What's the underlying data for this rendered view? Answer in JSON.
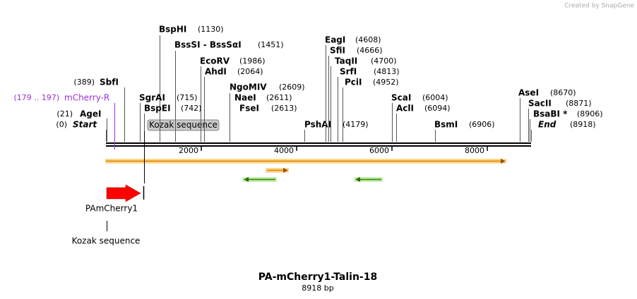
{
  "watermark": "Created by SnapGene",
  "title": "PA-mCherry1-Talin-18",
  "subtitle": "8918 bp",
  "axis": {
    "xlim": [
      0,
      8918
    ],
    "ticks": [
      2000,
      4000,
      6000,
      8000
    ]
  },
  "sites": [
    {
      "name": "SbfI",
      "position": "(389)"
    },
    {
      "name": "mCherry-R",
      "position": "(179 .. 197)"
    },
    {
      "name": "AgeI",
      "position": "(21)"
    },
    {
      "name": "Start",
      "position": "(0)"
    },
    {
      "name": "BspHI",
      "position": "(1130)"
    },
    {
      "name": "BssSI - BssSαI",
      "position": "(1451)"
    },
    {
      "name": "EcoRV",
      "position": "(1986)"
    },
    {
      "name": "AhdI",
      "position": "(2064)"
    },
    {
      "name": "NgoMIV",
      "position": "(2609)"
    },
    {
      "name": "NaeI",
      "position": "(2611)"
    },
    {
      "name": "FseI",
      "position": "(2613)"
    },
    {
      "name": "SgrAI",
      "position": "(715)"
    },
    {
      "name": "BspEI",
      "position": "(742)"
    },
    {
      "name": "PshAI",
      "position": "(4179)"
    },
    {
      "name": "EagI",
      "position": "(4608)"
    },
    {
      "name": "SfiI",
      "position": "(4666)"
    },
    {
      "name": "TaqII",
      "position": "(4700)"
    },
    {
      "name": "SrfI",
      "position": "(4813)"
    },
    {
      "name": "PciI",
      "position": "(4952)"
    },
    {
      "name": "ScaI",
      "position": "(6004)"
    },
    {
      "name": "AclI",
      "position": "(6094)"
    },
    {
      "name": "BsmI",
      "position": "(6906)"
    },
    {
      "name": "AseI",
      "position": "(8670)"
    },
    {
      "name": "SacII",
      "position": "(8871)"
    },
    {
      "name": "BsaBI *",
      "position": "(8906)"
    },
    {
      "name": "End",
      "position": "(8918)"
    }
  ],
  "kozak_box": "Kozak sequence",
  "features": {
    "pamcherry": "PAmCherry1",
    "kozak": "Kozak sequence"
  }
}
